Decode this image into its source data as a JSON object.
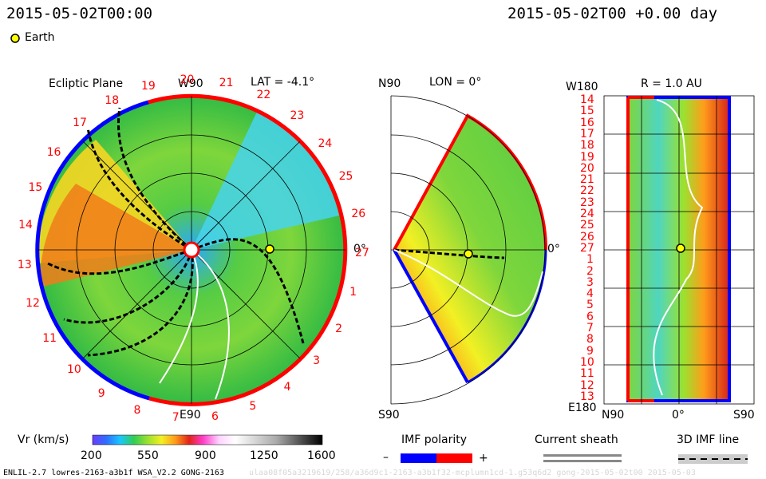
{
  "header": {
    "timestamp_left": "2015-05-02T00:00",
    "timestamp_right": "2015-05-02T00 +0.00 day",
    "earth_legend": "Earth"
  },
  "panels": {
    "ecliptic": {
      "title": "Ecliptic Plane",
      "lat_label": "LAT = -4.1°",
      "top_label": "W90",
      "bottom_label": "E90",
      "right_label": "0°",
      "rotation_numbers": [
        "20",
        "21",
        "22",
        "23",
        "24",
        "25",
        "26",
        "27",
        "1",
        "2",
        "3",
        "4",
        "5",
        "6",
        "7",
        "8",
        "9",
        "10",
        "11",
        "12",
        "13",
        "14",
        "15",
        "16",
        "17",
        "18",
        "19"
      ]
    },
    "meridional": {
      "top_label": "N90",
      "lon_label": "LON = 0°",
      "bottom_label": "S90",
      "right_label": "0°"
    },
    "radial": {
      "r_label": "R = 1.0 AU",
      "top_left_label": "W180",
      "bottom_left_label": "E180",
      "bottom_axis": [
        "N90",
        "0°",
        "S90"
      ],
      "rotation_numbers": [
        "14",
        "15",
        "16",
        "17",
        "18",
        "19",
        "20",
        "21",
        "22",
        "23",
        "24",
        "25",
        "26",
        "27",
        "1",
        "2",
        "3",
        "4",
        "5",
        "6",
        "7",
        "8",
        "9",
        "10",
        "11",
        "12",
        "13"
      ]
    }
  },
  "legends": {
    "vr_title": "Vr (km/s)",
    "vr_ticks": [
      "200",
      "550",
      "900",
      "1250",
      "1600"
    ],
    "imf_title": "IMF polarity",
    "imf_minus": "–",
    "imf_plus": "+",
    "current_sheath": "Current sheath",
    "imf_line": "3D IMF line"
  },
  "footer": {
    "model_info": "ENLIL-2.7 lowres-2163-a3b1f WSA_V2.2 GONG-2163",
    "run_id_faint": "ulaa08f05a3219619/258/a36d9c1-2163-a3b1f32-mcplumn1cd-1.g53q6d2 gong-2015-05-02t00    2015-05-03"
  },
  "colors": {
    "positive_polarity": "#ff0000",
    "negative_polarity": "#0000ff",
    "earth": "#ffff00"
  }
}
